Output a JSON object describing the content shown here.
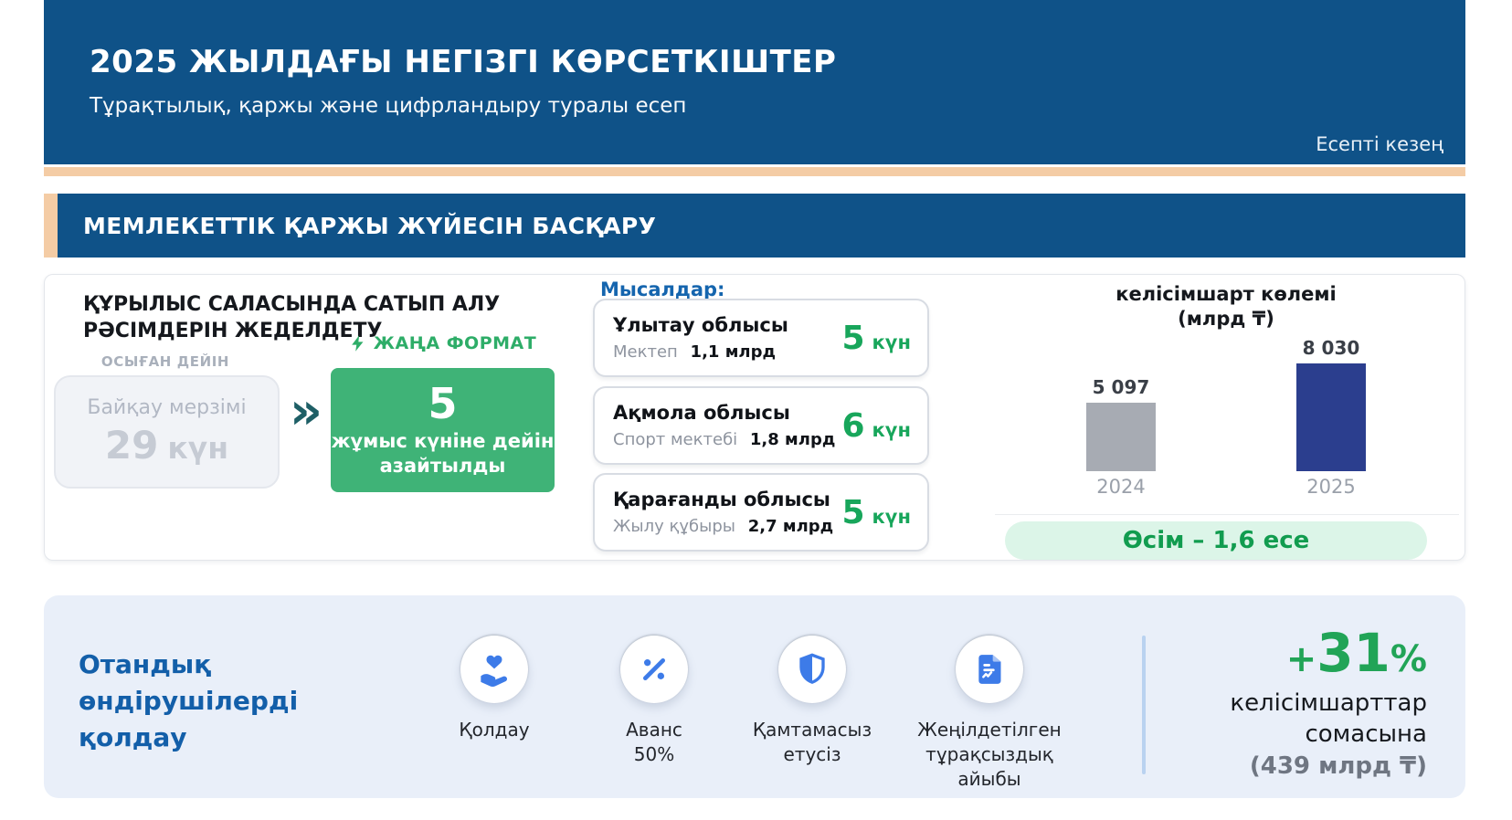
{
  "header": {
    "title": "2025 ЖЫЛДАҒЫ НЕГІЗГІ КӨРСЕТКІШТЕР",
    "subtitle": "Тұрақтылық, қаржы және цифрландыру туралы есеп",
    "period_label": "Есепті кезең"
  },
  "section": {
    "title": "МЕМЛЕКЕТТІК ҚАРЖЫ ЖҮЙЕСІН БАСҚАРУ"
  },
  "procurement": {
    "heading": "ҚҰРЫЛЫС САЛАСЫНДА САТЫП АЛУ РӘСІМДЕРІН ЖЕДЕЛДЕТУ",
    "before_label": "ОСЫҒАН ДЕЙІН",
    "before_caption": "Байқау мерзімі",
    "before_value": "29",
    "before_unit": "күн",
    "arrow": "»",
    "new_format_label": "ЖАҢА ФОРМАТ",
    "after_value": "5",
    "after_caption": "жұмыс күніне дейін азайтылды"
  },
  "examples": {
    "title": "Мысалдар:",
    "items": [
      {
        "region": "Ұлытау облысы",
        "object": "Мектеп",
        "amount": "1,1 млрд",
        "days_value": "5",
        "days_unit": "күн"
      },
      {
        "region": "Ақмола облысы",
        "object": "Спорт мектебі",
        "amount": "1,8 млрд",
        "days_value": "6",
        "days_unit": "күн"
      },
      {
        "region": "Қарағанды облысы",
        "object": "Жылу құбыры",
        "amount": "2,7 млрд",
        "days_value": "5",
        "days_unit": "күн"
      }
    ]
  },
  "chart_data": {
    "type": "bar",
    "title": "келісімшарт көлемі",
    "subtitle": "(млрд ₸)",
    "categories": [
      "2024",
      "2025"
    ],
    "values": [
      5097,
      8030
    ],
    "value_labels": [
      "5 097",
      "8 030"
    ],
    "bar_colors": [
      "#A7ABB3",
      "#2B3E8E"
    ],
    "ylim": [
      0,
      8030
    ],
    "legend": "none",
    "grid": "off",
    "growth_note": "Өсім – 1,6 есе"
  },
  "support": {
    "heading": "Отандық өндірушілерді қолдау",
    "items": [
      {
        "icon": "hand-heart-icon",
        "label": "Қолдау"
      },
      {
        "icon": "percent-icon",
        "label": "Аванс 50%"
      },
      {
        "icon": "shield-icon",
        "label": "Қамтамасыз етусіз"
      },
      {
        "icon": "document-icon",
        "label": "Жеңілдетілген тұрақсыздық айыбы"
      }
    ],
    "result": {
      "delta_plus": "+",
      "delta_value": "31",
      "delta_pct": "%",
      "caption": "келісімшарттар сомасына",
      "amount": "(439 млрд ₸)"
    }
  },
  "colors": {
    "header_blue": "#0F5288",
    "peach": "#F4CCA5",
    "green_box": "#3FB377",
    "green_text": "#18A65B",
    "growth_pill_bg": "#DCF5E8",
    "navy_bar": "#2B3E8E",
    "gray_bar": "#A7ABB3",
    "support_bg": "#E9EFF9",
    "icon_blue": "#3D7BE8",
    "heading_blue": "#135FA9"
  }
}
